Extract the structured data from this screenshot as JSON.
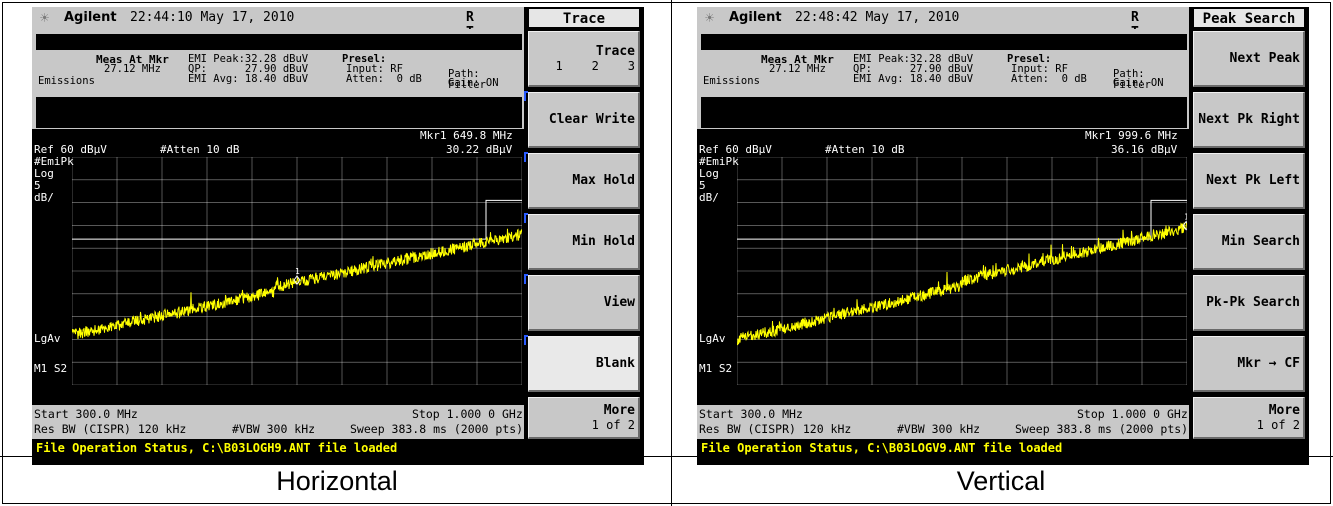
{
  "captions": [
    "Horizontal",
    "Vertical"
  ],
  "screens": [
    {
      "brand": "Agilent",
      "time": "22:44:10  May 17, 2010",
      "rt": "R T",
      "meas": {
        "label_bold": "Meas At Mkr",
        "freq": "27.12 MHz",
        "section": "Emissions",
        "emi_peak": "EMI Peak:32.28 dBuV",
        "qp": "QP:      27.90 dBuV",
        "emi_avg": "EMI Avg: 18.40 dBuV",
        "presel": "Presel:",
        "input": "Input: RF",
        "atten": "Atten:  0 dB",
        "path": "Path: Filter",
        "gain": "Gain: ON"
      },
      "marker": "Mkr1  649.8 MHz",
      "ref": "Ref 60 dBµV",
      "atten_top": "#Atten 10 dB",
      "marker_amp": "30.22 dBµV",
      "left_labels": [
        "#EmiPk",
        "Log",
        "5",
        "dB/"
      ],
      "lgav": "LgAv",
      "m1s2": "M1  S2",
      "start": "Start 300.0 MHz",
      "stop": "Stop 1.000 0 GHz",
      "resbw": "Res BW (CISPR) 120 kHz",
      "vbw": "#VBW 300 kHz",
      "sweep": "Sweep 383.8 ms (2000 pts)",
      "file_status": "File Operation Status, C:\\B03LOGH9.ANT file loaded",
      "marker_label": "1",
      "menu_title": "Trace",
      "softkeys": [
        {
          "label": "Trace",
          "sub": "1    2    3"
        },
        {
          "label": "Clear Write"
        },
        {
          "label": "Max Hold"
        },
        {
          "label": "Min Hold"
        },
        {
          "label": "View"
        },
        {
          "label": "Blank"
        },
        {
          "label": "More",
          "sub": "1 of 2"
        }
      ]
    },
    {
      "brand": "Agilent",
      "time": "22:48:42  May 17, 2010",
      "rt": "R T",
      "meas": {
        "label_bold": "Meas At Mkr",
        "freq": "27.12 MHz",
        "section": "Emissions",
        "emi_peak": "EMI Peak:32.28 dBuV",
        "qp": "QP:      27.90 dBuV",
        "emi_avg": "EMI Avg: 18.40 dBuV",
        "presel": "Presel:",
        "input": "Input: RF",
        "atten": "Atten:  0 dB",
        "path": "Path: Filter",
        "gain": "Gain: ON"
      },
      "marker": "Mkr1  999.6 MHz",
      "ref": "Ref 60 dBµV",
      "atten_top": "#Atten 10 dB",
      "marker_amp": "36.16 dBµV",
      "left_labels": [
        "#EmiPk",
        "Log",
        "5",
        "dB/"
      ],
      "lgav": "LgAv",
      "m1s2": "M1  S2",
      "start": "Start 300.0 MHz",
      "stop": "Stop 1.000 0 GHz",
      "resbw": "Res BW (CISPR) 120 kHz",
      "vbw": "#VBW 300 kHz",
      "sweep": "Sweep 383.8 ms (2000 pts)",
      "file_status": "File Operation Status, C:\\B03LOGV9.ANT file loaded",
      "marker_label": "1",
      "menu_title": "Peak Search",
      "softkeys": [
        {
          "label": "Next Peak"
        },
        {
          "label": "Next Pk Right"
        },
        {
          "label": "Next Pk Left"
        },
        {
          "label": "Min Search"
        },
        {
          "label": "Pk-Pk Search"
        },
        {
          "label": "Mkr → CF"
        },
        {
          "label": "More",
          "sub": "1 of 2"
        }
      ]
    }
  ],
  "traces": [
    {
      "marker_pos": 0.5,
      "start_level": 0.22,
      "end_level": 0.64,
      "knee": 0.45
    },
    {
      "marker_pos": 0.998,
      "start_level": 0.2,
      "end_level": 0.67,
      "knee": 0.5
    }
  ],
  "colors": {
    "trace": "#ffff00",
    "grid": "#ffffff",
    "screen_bg": "#000000",
    "panel_bg": "#c8c8c8",
    "file_text": "#ffff00"
  }
}
